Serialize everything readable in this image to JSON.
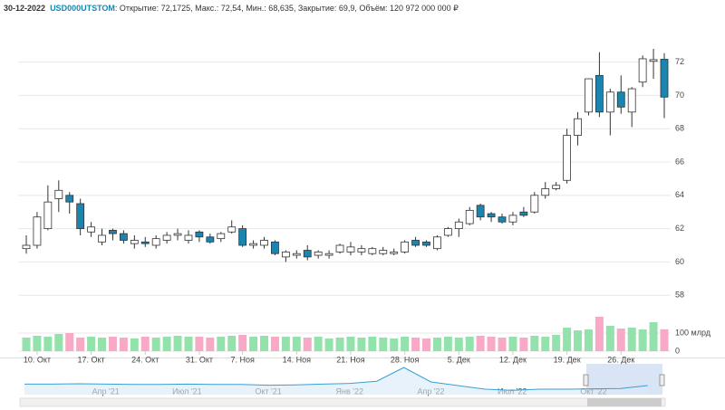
{
  "chart_data": {
    "type": "candlestick",
    "title": "30-12-2022",
    "ticker": "USD000UTSTOM",
    "summary": ": Открытие: 72,1725, Макс.: 72,54, Мин.: 68,635, Закрытие: 69,9, Объём: 120 972 000 000 ₽",
    "categories": [
      null,
      "10. Окт",
      null,
      null,
      null,
      null,
      "17. Окт",
      null,
      null,
      null,
      null,
      "24. Окт",
      null,
      null,
      null,
      null,
      "31. Окт",
      null,
      null,
      null,
      "7. Ноя",
      null,
      null,
      null,
      null,
      "14. Ноя",
      null,
      null,
      null,
      null,
      "21. Ноя",
      null,
      null,
      null,
      null,
      "28. Ноя",
      null,
      null,
      null,
      null,
      "5. Дек",
      null,
      null,
      null,
      null,
      "12. Дек",
      null,
      null,
      null,
      null,
      "19. Дек",
      null,
      null,
      null,
      null,
      "26. Дек",
      null,
      null,
      null,
      null
    ],
    "open": [
      60.8,
      61.0,
      62.0,
      63.8,
      64.0,
      63.5,
      61.8,
      61.2,
      61.9,
      61.7,
      61.1,
      61.2,
      61.0,
      61.3,
      61.6,
      61.3,
      61.8,
      61.5,
      61.4,
      61.8,
      62.0,
      61.0,
      61.0,
      61.2,
      60.3,
      60.4,
      60.7,
      60.4,
      60.4,
      60.6,
      60.6,
      60.6,
      60.5,
      60.5,
      60.5,
      60.6,
      61.3,
      61.2,
      60.8,
      61.6,
      62.0,
      62.3,
      63.4,
      62.9,
      62.7,
      62.4,
      63.0,
      63.0,
      64.0,
      64.4,
      64.9,
      67.6,
      69.0,
      71.2,
      69.0,
      70.2,
      69.0,
      70.8,
      72.05,
      72.1725
    ],
    "high": [
      61.6,
      63.0,
      64.6,
      64.9,
      64.2,
      63.8,
      62.4,
      62.0,
      62.0,
      61.9,
      61.6,
      61.5,
      61.6,
      61.8,
      62.0,
      61.9,
      61.9,
      61.7,
      61.8,
      62.5,
      62.2,
      61.3,
      61.5,
      61.3,
      60.7,
      60.7,
      61.0,
      60.7,
      60.7,
      61.1,
      61.2,
      61.0,
      60.9,
      60.9,
      60.8,
      61.3,
      61.5,
      61.3,
      61.6,
      62.1,
      62.6,
      63.3,
      63.5,
      63.0,
      62.9,
      63.0,
      63.3,
      64.2,
      64.8,
      64.8,
      68.0,
      69.0,
      71.0,
      72.6,
      70.4,
      71.2,
      70.5,
      72.4,
      72.8,
      72.54
    ],
    "low": [
      60.5,
      60.8,
      61.9,
      63.0,
      62.9,
      61.6,
      61.5,
      61.0,
      61.3,
      61.1,
      60.8,
      60.9,
      60.8,
      61.1,
      61.3,
      61.1,
      61.2,
      61.1,
      61.2,
      61.7,
      60.9,
      60.8,
      60.8,
      60.4,
      60.0,
      60.2,
      60.1,
      60.2,
      60.2,
      60.5,
      60.4,
      60.4,
      60.4,
      60.4,
      60.4,
      60.5,
      60.9,
      60.9,
      60.7,
      61.5,
      61.5,
      62.2,
      62.5,
      62.4,
      62.3,
      62.2,
      62.7,
      62.9,
      63.8,
      64.3,
      64.7,
      67.0,
      68.8,
      68.7,
      67.6,
      68.9,
      68.1,
      70.5,
      71.0,
      68.635
    ],
    "close": [
      61.0,
      62.7,
      63.6,
      64.3,
      63.6,
      62.0,
      62.1,
      61.6,
      61.7,
      61.3,
      61.3,
      61.1,
      61.4,
      61.6,
      61.7,
      61.6,
      61.5,
      61.2,
      61.7,
      62.1,
      61.0,
      61.1,
      61.3,
      60.5,
      60.6,
      60.5,
      60.3,
      60.6,
      60.5,
      61.0,
      60.9,
      60.8,
      60.8,
      60.7,
      60.6,
      61.2,
      61.0,
      61.0,
      61.5,
      62.0,
      62.4,
      63.1,
      62.7,
      62.7,
      62.4,
      62.8,
      62.8,
      64.0,
      64.4,
      64.6,
      67.6,
      68.6,
      71.0,
      69.0,
      70.2,
      69.3,
      70.4,
      72.2,
      72.15,
      69.9
    ],
    "up_color": "#ffffff",
    "down_color": "#1a86b0",
    "ylim": [
      57.25,
      74.1
    ],
    "yticks": [
      58,
      60,
      62,
      64,
      66,
      68,
      70,
      72
    ],
    "grid": true,
    "volume": [
      75,
      85,
      80,
      95,
      100,
      75,
      80,
      75,
      80,
      75,
      70,
      80,
      75,
      80,
      85,
      80,
      80,
      75,
      80,
      85,
      90,
      80,
      85,
      80,
      80,
      80,
      75,
      80,
      70,
      75,
      80,
      75,
      80,
      75,
      70,
      80,
      75,
      70,
      75,
      80,
      75,
      80,
      85,
      80,
      75,
      80,
      75,
      85,
      80,
      90,
      130,
      115,
      120,
      190,
      140,
      125,
      130,
      120,
      160,
      120.972
    ],
    "volume_up_color": "#93e2ab",
    "volume_down_color": "#f7a9c5",
    "volume_ylim": [
      0,
      210
    ],
    "volume_yticks": [
      0,
      {
        "value": 100,
        "label": "100 млрд"
      }
    ],
    "navigator": {
      "categories": [
        null,
        null,
        null,
        "Апр '21",
        null,
        null,
        "Июл '21",
        null,
        null,
        "Окт '21",
        null,
        null,
        "Янв '22",
        null,
        null,
        "Апр '22",
        null,
        null,
        "Июл '22",
        null,
        null,
        "Окт '22",
        null,
        null
      ],
      "values": [
        74,
        74,
        75,
        74,
        73,
        73,
        74,
        73,
        73,
        71,
        72,
        74,
        76,
        82,
        120,
        80,
        70,
        60,
        57,
        60,
        60,
        61,
        62,
        70
      ],
      "ylim": [
        45,
        130
      ]
    }
  }
}
